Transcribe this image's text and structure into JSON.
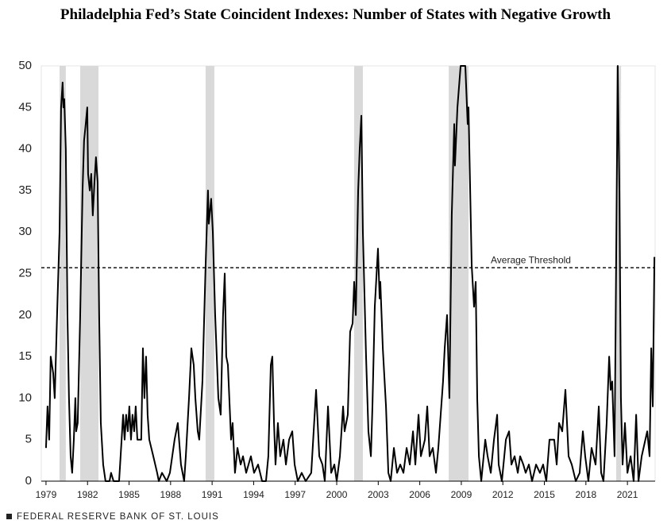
{
  "chart_data": {
    "type": "line",
    "title": "Philadelphia Fed’s State Coincident Indexes: Number of States with Negative Growth",
    "source": "FEDERAL RESERVE BANK OF ST. LOUIS",
    "color": "#000000",
    "x": [
      1979.0,
      1979.11,
      1979.23,
      1979.34,
      1979.52,
      1979.63,
      1979.8,
      1979.98,
      1980.09,
      1980.2,
      1980.26,
      1980.32,
      1980.43,
      1980.55,
      1980.66,
      1980.78,
      1980.89,
      1981.01,
      1981.12,
      1981.18,
      1981.29,
      1981.47,
      1981.64,
      1981.75,
      1981.87,
      1981.98,
      1982.04,
      1982.16,
      1982.27,
      1982.38,
      1982.5,
      1982.61,
      1982.73,
      1982.84,
      1982.96,
      1983.13,
      1983.3,
      1983.59,
      1983.7,
      1983.88,
      1984.28,
      1984.39,
      1984.57,
      1984.68,
      1984.79,
      1984.91,
      1985.02,
      1985.14,
      1985.25,
      1985.37,
      1985.48,
      1985.6,
      1985.88,
      1986.0,
      1986.11,
      1986.23,
      1986.34,
      1986.46,
      1986.75,
      1987.03,
      1987.15,
      1987.38,
      1987.72,
      1987.95,
      1988.29,
      1988.52,
      1988.75,
      1988.98,
      1989.1,
      1989.33,
      1989.5,
      1989.67,
      1989.79,
      1989.96,
      1990.07,
      1990.3,
      1990.53,
      1990.7,
      1990.76,
      1990.93,
      1991.05,
      1991.22,
      1991.45,
      1991.62,
      1991.79,
      1991.91,
      1992.02,
      1992.14,
      1992.37,
      1992.48,
      1992.65,
      1992.83,
      1993.06,
      1993.23,
      1993.46,
      1993.8,
      1994.03,
      1994.32,
      1994.61,
      1994.89,
      1995.06,
      1995.24,
      1995.35,
      1995.47,
      1995.58,
      1995.75,
      1995.92,
      1996.15,
      1996.33,
      1996.56,
      1996.79,
      1996.96,
      1997.19,
      1997.47,
      1997.76,
      1998.16,
      1998.51,
      1998.74,
      1998.97,
      1999.14,
      1999.37,
      1999.6,
      1999.83,
      2000.0,
      2000.23,
      2000.46,
      2000.57,
      2000.8,
      2000.97,
      2001.15,
      2001.26,
      2001.38,
      2001.55,
      2001.66,
      2001.78,
      2001.89,
      2002.12,
      2002.29,
      2002.47,
      2002.58,
      2002.75,
      2002.98,
      2003.1,
      2003.15,
      2003.33,
      2003.56,
      2003.73,
      2003.9,
      2004.13,
      2004.36,
      2004.59,
      2004.82,
      2005.05,
      2005.28,
      2005.51,
      2005.68,
      2005.91,
      2006.08,
      2006.37,
      2006.54,
      2006.71,
      2006.94,
      2007.17,
      2007.34,
      2007.51,
      2007.68,
      2007.8,
      2007.97,
      2008.14,
      2008.31,
      2008.49,
      2008.54,
      2008.72,
      2008.95,
      2009.29,
      2009.46,
      2009.52,
      2009.75,
      2009.92,
      2010.04,
      2010.15,
      2010.27,
      2010.44,
      2010.73,
      2010.9,
      2011.13,
      2011.36,
      2011.59,
      2011.7,
      2011.93,
      2012.22,
      2012.45,
      2012.62,
      2012.85,
      2013.08,
      2013.25,
      2013.48,
      2013.65,
      2013.88,
      2014.11,
      2014.4,
      2014.68,
      2014.91,
      2015.14,
      2015.37,
      2015.71,
      2015.89,
      2016.06,
      2016.29,
      2016.52,
      2016.75,
      2016.98,
      2017.27,
      2017.55,
      2017.78,
      2017.95,
      2018.18,
      2018.41,
      2018.7,
      2018.93,
      2019.1,
      2019.27,
      2019.5,
      2019.68,
      2019.79,
      2019.9,
      2020.07,
      2020.3,
      2020.42,
      2020.53,
      2020.65,
      2020.82,
      2021.0,
      2021.23,
      2021.45,
      2021.63,
      2021.8,
      2022.03,
      2022.43,
      2022.6,
      2022.72,
      2022.83,
      2022.95
    ],
    "values": [
      4,
      9,
      5,
      15,
      13,
      10,
      20,
      30,
      45,
      48,
      45,
      46,
      40,
      20,
      10,
      3,
      1,
      5,
      10,
      6,
      7,
      20,
      35,
      41,
      43,
      45,
      37,
      35,
      37,
      32,
      36,
      39,
      36,
      20,
      7,
      2,
      0,
      0,
      1,
      0,
      0,
      3,
      8,
      5,
      8,
      6,
      9,
      5,
      8,
      6,
      9,
      5,
      5,
      16,
      10,
      15,
      8,
      5,
      3,
      1,
      0,
      1,
      0,
      1,
      5,
      7,
      2,
      0,
      3,
      10,
      16,
      14,
      10,
      6,
      5,
      12,
      26,
      35,
      31,
      34,
      30,
      20,
      10,
      8,
      20,
      25,
      15,
      14,
      5,
      7,
      1,
      4,
      2,
      3,
      1,
      3,
      1,
      2,
      0,
      0,
      3,
      14,
      15,
      7,
      2,
      7,
      3,
      5,
      2,
      5,
      6,
      2,
      0,
      1,
      0,
      1,
      11,
      3,
      2,
      0,
      9,
      1,
      2,
      0,
      3,
      9,
      6,
      8,
      18,
      19,
      24,
      20,
      35,
      40,
      44,
      30,
      15,
      6,
      3,
      9,
      21,
      28,
      22,
      24,
      16,
      9,
      1,
      0,
      4,
      1,
      2,
      1,
      4,
      2,
      6,
      2,
      8,
      3,
      5,
      9,
      3,
      4,
      1,
      4,
      8,
      12,
      16,
      20,
      10,
      32,
      43,
      38,
      45,
      50,
      50,
      43,
      45,
      26,
      21,
      24,
      10,
      3,
      0,
      5,
      3,
      1,
      5,
      8,
      2,
      0,
      5,
      6,
      2,
      3,
      1,
      3,
      2,
      1,
      2,
      0,
      2,
      1,
      2,
      0,
      5,
      5,
      2,
      7,
      6,
      11,
      3,
      2,
      0,
      1,
      6,
      3,
      0,
      4,
      2,
      9,
      1,
      0,
      7,
      15,
      11,
      12,
      3,
      50,
      35,
      10,
      2,
      7,
      1,
      3,
      0,
      8,
      0,
      3,
      6,
      3,
      16,
      9,
      27
    ],
    "recessions": [
      [
        1979.98,
        1980.43
      ],
      [
        1981.47,
        1982.79
      ],
      [
        1990.53,
        1991.16
      ],
      [
        2001.26,
        2001.89
      ],
      [
        2008.09,
        2009.52
      ],
      [
        2020.19,
        2020.54
      ]
    ],
    "recession_color": "#d9d9d9",
    "threshold": {
      "value": 25.7,
      "label": "Average Threshold"
    },
    "xlim": [
      1978.66,
      2023.0
    ],
    "xticks": [
      1979,
      1982,
      1985,
      1988,
      1991,
      1994,
      1997,
      2000,
      2003,
      2006,
      2009,
      2012,
      2015,
      2018,
      2021
    ],
    "ylim": [
      0,
      50
    ],
    "yticks": [
      0,
      5,
      10,
      15,
      20,
      25,
      30,
      35,
      40,
      45,
      50
    ],
    "grid": false
  }
}
